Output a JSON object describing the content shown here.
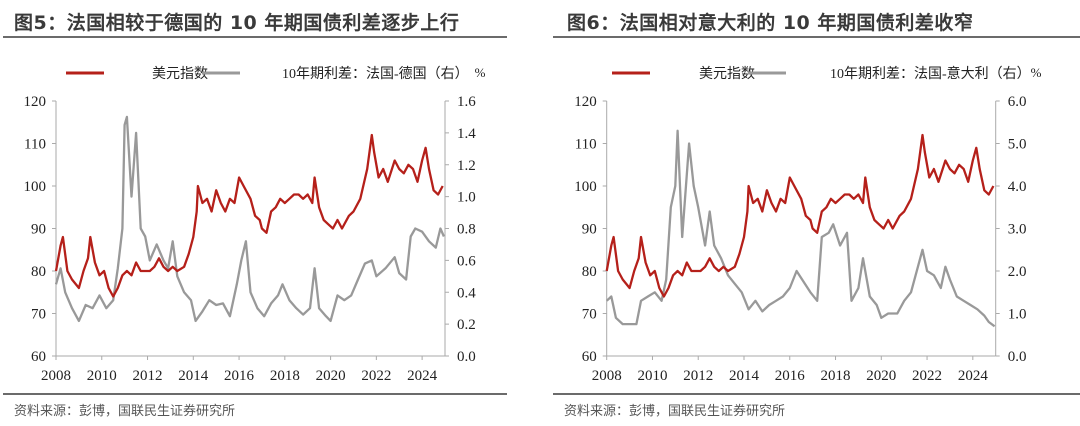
{
  "chart_data": [
    {
      "type": "line",
      "title": "图5：法国相较于德国的 10 年期国债利差逐步上行",
      "source": "资料来源：彭博，国联民生证券研究所",
      "unit_right": "%",
      "x_ticks": [
        "2008",
        "2010",
        "2012",
        "2014",
        "2016",
        "2018",
        "2020",
        "2022",
        "2024"
      ],
      "xlim": [
        2008,
        2025
      ],
      "y_left": {
        "ylim": [
          60,
          120
        ],
        "ticks": [
          "60",
          "70",
          "80",
          "90",
          "100",
          "110",
          "120"
        ]
      },
      "y_right": {
        "ylim": [
          0,
          1.6
        ],
        "ticks": [
          "0.0",
          "0.2",
          "0.4",
          "0.6",
          "0.8",
          "1.0",
          "1.2",
          "1.4",
          "1.6"
        ]
      },
      "legend_placement": "top",
      "series": [
        {
          "name": "美元指数",
          "axis": "left",
          "color": "#b5201a",
          "x": [
            2008.0,
            2008.2,
            2008.3,
            2008.5,
            2008.7,
            2009.0,
            2009.2,
            2009.4,
            2009.5,
            2009.7,
            2009.9,
            2010.1,
            2010.3,
            2010.5,
            2010.7,
            2010.9,
            2011.1,
            2011.3,
            2011.5,
            2011.7,
            2011.9,
            2012.1,
            2012.3,
            2012.5,
            2012.7,
            2012.9,
            2013.1,
            2013.3,
            2013.6,
            2013.8,
            2014.0,
            2014.15,
            2014.2,
            2014.4,
            2014.6,
            2014.8,
            2015.0,
            2015.2,
            2015.4,
            2015.6,
            2015.8,
            2016.0,
            2016.2,
            2016.5,
            2016.7,
            2016.9,
            2017.0,
            2017.2,
            2017.4,
            2017.6,
            2017.8,
            2018.0,
            2018.2,
            2018.4,
            2018.6,
            2018.8,
            2019.0,
            2019.2,
            2019.3,
            2019.5,
            2019.7,
            2019.9,
            2020.1,
            2020.3,
            2020.5,
            2020.8,
            2021.0,
            2021.3,
            2021.6,
            2021.8,
            2021.9,
            2022.1,
            2022.3,
            2022.5,
            2022.8,
            2023.0,
            2023.2,
            2023.4,
            2023.6,
            2023.8,
            2024.0,
            2024.15,
            2024.3,
            2024.5,
            2024.7,
            2024.9
          ],
          "y": [
            80,
            86,
            88,
            80,
            78,
            76,
            80,
            83,
            88,
            82,
            79,
            80,
            76,
            74,
            76,
            79,
            80,
            79,
            82,
            80,
            80,
            80,
            81,
            83,
            81,
            80,
            81,
            80,
            81,
            84,
            88,
            94,
            100,
            96,
            97,
            94,
            99,
            96,
            94,
            97,
            96,
            102,
            100,
            97,
            93,
            92,
            90,
            89,
            94,
            95,
            97,
            96,
            97,
            98,
            98,
            97,
            98,
            96,
            102,
            95,
            92,
            91,
            90,
            92,
            90,
            93,
            94,
            97,
            104,
            112,
            108,
            102,
            104,
            101,
            106,
            104,
            103,
            105,
            104,
            101,
            106,
            109,
            104,
            99,
            98,
            100
          ]
        },
        {
          "name": "10年期利差：法国-德国（右）",
          "axis": "right",
          "color": "#999999",
          "x": [
            2008.0,
            2008.2,
            2008.4,
            2008.7,
            2009.0,
            2009.3,
            2009.6,
            2009.9,
            2010.2,
            2010.5,
            2010.7,
            2010.9,
            2011.0,
            2011.1,
            2011.3,
            2011.5,
            2011.7,
            2011.9,
            2012.1,
            2012.4,
            2012.7,
            2012.9,
            2013.1,
            2013.3,
            2013.6,
            2013.9,
            2014.1,
            2014.4,
            2014.7,
            2015.0,
            2015.3,
            2015.6,
            2015.9,
            2016.1,
            2016.3,
            2016.5,
            2016.8,
            2017.1,
            2017.4,
            2017.7,
            2017.9,
            2018.2,
            2018.5,
            2018.8,
            2019.1,
            2019.3,
            2019.5,
            2019.8,
            2020.0,
            2020.3,
            2020.6,
            2020.9,
            2021.2,
            2021.5,
            2021.8,
            2022.0,
            2022.4,
            2022.8,
            2023.0,
            2023.3,
            2023.5,
            2023.7,
            2024.0,
            2024.3,
            2024.6,
            2024.8,
            2024.95
          ],
          "y": [
            0.45,
            0.55,
            0.4,
            0.3,
            0.22,
            0.32,
            0.3,
            0.38,
            0.3,
            0.35,
            0.55,
            0.8,
            1.45,
            1.5,
            1.0,
            1.4,
            0.8,
            0.75,
            0.6,
            0.7,
            0.6,
            0.55,
            0.72,
            0.5,
            0.4,
            0.35,
            0.22,
            0.28,
            0.35,
            0.32,
            0.33,
            0.25,
            0.45,
            0.6,
            0.72,
            0.4,
            0.3,
            0.25,
            0.33,
            0.38,
            0.45,
            0.35,
            0.3,
            0.26,
            0.3,
            0.55,
            0.3,
            0.25,
            0.22,
            0.38,
            0.35,
            0.38,
            0.48,
            0.58,
            0.6,
            0.5,
            0.55,
            0.62,
            0.52,
            0.48,
            0.75,
            0.8,
            0.78,
            0.72,
            0.68,
            0.8,
            0.75
          ]
        }
      ]
    },
    {
      "type": "line",
      "title": "图6：法国相对意大利的 10 年期国债利差收窄",
      "source": "资料来源：彭博，国联民生证券研究所",
      "unit_right": "%",
      "x_ticks": [
        "2008",
        "2010",
        "2012",
        "2014",
        "2016",
        "2018",
        "2020",
        "2022",
        "2024"
      ],
      "xlim": [
        2008,
        2025
      ],
      "y_left": {
        "ylim": [
          60,
          120
        ],
        "ticks": [
          "60",
          "70",
          "80",
          "90",
          "100",
          "110",
          "120"
        ]
      },
      "y_right": {
        "ylim": [
          0,
          6
        ],
        "ticks": [
          "0.0",
          "1.0",
          "2.0",
          "3.0",
          "4.0",
          "5.0",
          "6.0"
        ]
      },
      "legend_placement": "top",
      "series": [
        {
          "name": "美元指数",
          "axis": "left",
          "color": "#b5201a",
          "x": [
            2008.0,
            2008.2,
            2008.3,
            2008.5,
            2008.7,
            2009.0,
            2009.2,
            2009.4,
            2009.5,
            2009.7,
            2009.9,
            2010.1,
            2010.3,
            2010.5,
            2010.7,
            2010.9,
            2011.1,
            2011.3,
            2011.5,
            2011.7,
            2011.9,
            2012.1,
            2012.3,
            2012.5,
            2012.7,
            2012.9,
            2013.1,
            2013.3,
            2013.6,
            2013.8,
            2014.0,
            2014.15,
            2014.2,
            2014.4,
            2014.6,
            2014.8,
            2015.0,
            2015.2,
            2015.4,
            2015.6,
            2015.8,
            2016.0,
            2016.2,
            2016.5,
            2016.7,
            2016.9,
            2017.0,
            2017.2,
            2017.4,
            2017.6,
            2017.8,
            2018.0,
            2018.2,
            2018.4,
            2018.6,
            2018.8,
            2019.0,
            2019.2,
            2019.3,
            2019.5,
            2019.7,
            2019.9,
            2020.1,
            2020.3,
            2020.5,
            2020.8,
            2021.0,
            2021.3,
            2021.6,
            2021.8,
            2021.9,
            2022.1,
            2022.3,
            2022.5,
            2022.8,
            2023.0,
            2023.2,
            2023.4,
            2023.6,
            2023.8,
            2024.0,
            2024.15,
            2024.3,
            2024.5,
            2024.7,
            2024.9
          ],
          "y": [
            80,
            86,
            88,
            80,
            78,
            76,
            80,
            83,
            88,
            82,
            79,
            80,
            76,
            74,
            76,
            79,
            80,
            79,
            82,
            80,
            80,
            80,
            81,
            83,
            81,
            80,
            81,
            80,
            81,
            84,
            88,
            94,
            100,
            96,
            97,
            94,
            99,
            96,
            94,
            97,
            96,
            102,
            100,
            97,
            93,
            92,
            90,
            89,
            94,
            95,
            97,
            96,
            97,
            98,
            98,
            97,
            98,
            96,
            102,
            95,
            92,
            91,
            90,
            92,
            90,
            93,
            94,
            97,
            104,
            112,
            108,
            102,
            104,
            101,
            106,
            104,
            103,
            105,
            104,
            101,
            106,
            109,
            104,
            99,
            98,
            100
          ]
        },
        {
          "name": "10年期利差：法国-意大利（右）",
          "axis": "right",
          "color": "#999999",
          "x": [
            2008.0,
            2008.2,
            2008.4,
            2008.7,
            2009.0,
            2009.3,
            2009.5,
            2009.8,
            2010.1,
            2010.4,
            2010.6,
            2010.8,
            2011.0,
            2011.1,
            2011.3,
            2011.6,
            2011.8,
            2012.0,
            2012.3,
            2012.5,
            2012.7,
            2013.0,
            2013.3,
            2013.6,
            2013.9,
            2014.2,
            2014.5,
            2014.8,
            2015.1,
            2015.4,
            2015.7,
            2016.0,
            2016.3,
            2016.6,
            2016.9,
            2017.2,
            2017.4,
            2017.7,
            2017.9,
            2018.2,
            2018.5,
            2018.7,
            2019.0,
            2019.2,
            2019.5,
            2019.8,
            2020.0,
            2020.3,
            2020.7,
            2021.0,
            2021.3,
            2021.6,
            2021.8,
            2022.0,
            2022.3,
            2022.6,
            2022.8,
            2023.0,
            2023.3,
            2023.6,
            2023.9,
            2024.2,
            2024.5,
            2024.7,
            2024.95
          ],
          "y": [
            1.3,
            1.4,
            0.9,
            0.75,
            0.75,
            0.75,
            1.3,
            1.4,
            1.5,
            1.3,
            1.8,
            3.5,
            4.0,
            5.3,
            2.8,
            5.0,
            4.0,
            3.5,
            2.6,
            3.4,
            2.6,
            2.3,
            1.9,
            1.7,
            1.5,
            1.1,
            1.3,
            1.05,
            1.2,
            1.3,
            1.4,
            1.6,
            2.0,
            1.75,
            1.5,
            1.3,
            2.8,
            2.9,
            3.1,
            2.6,
            2.9,
            1.3,
            1.6,
            2.3,
            1.4,
            1.2,
            0.9,
            1.0,
            1.0,
            1.3,
            1.5,
            2.1,
            2.5,
            2.0,
            1.9,
            1.6,
            2.1,
            1.8,
            1.4,
            1.3,
            1.2,
            1.1,
            0.95,
            0.8,
            0.7
          ]
        }
      ]
    }
  ]
}
